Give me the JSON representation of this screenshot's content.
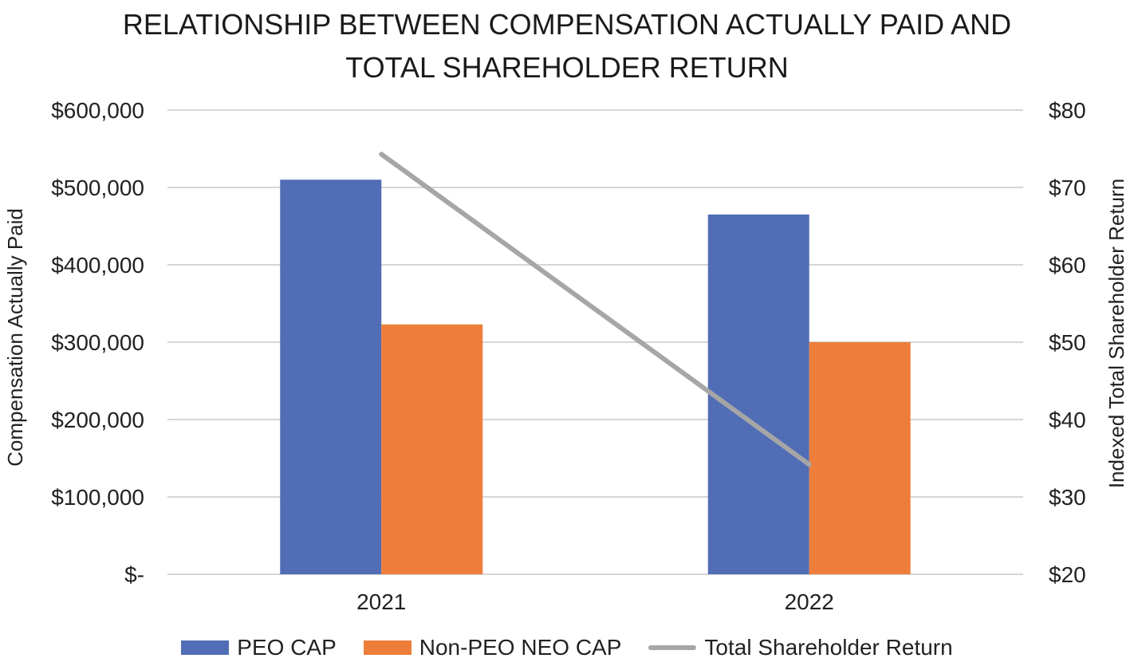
{
  "chart_data": {
    "type": "bar",
    "title_lines": [
      "RELATIONSHIP BETWEEN COMPENSATION ACTUALLY PAID AND",
      "TOTAL SHAREHOLDER RETURN"
    ],
    "categories": [
      "2021",
      "2022"
    ],
    "series": [
      {
        "name": "PEO CAP",
        "type": "bar",
        "axis": "left",
        "color": "#516db5",
        "values": [
          510000,
          465000
        ]
      },
      {
        "name": "Non-PEO NEO CAP",
        "type": "bar",
        "axis": "left",
        "color": "#ed7e3a",
        "values": [
          323000,
          300000
        ]
      },
      {
        "name": "Total Shareholder Return",
        "type": "line",
        "axis": "right",
        "color": "#a6a6a6",
        "values": [
          74.3,
          34.2
        ]
      }
    ],
    "ylabel": "Compensation Actually Paid",
    "y2label": "Indexed Total Shareholder Return",
    "ylim": [
      0,
      600000
    ],
    "y2lim": [
      20,
      80
    ],
    "yticks": [
      0,
      100000,
      200000,
      300000,
      400000,
      500000,
      600000
    ],
    "ytick_labels": [
      "$-",
      "$100,000",
      "$200,000",
      "$300,000",
      "$400,000",
      "$500,000",
      "$600,000"
    ],
    "y2ticks": [
      20,
      30,
      40,
      50,
      60,
      70,
      80
    ],
    "y2tick_labels": [
      "$20",
      "$30",
      "$40",
      "$50",
      "$60",
      "$70",
      "$80"
    ],
    "grid": true,
    "legend_position": "bottom"
  }
}
